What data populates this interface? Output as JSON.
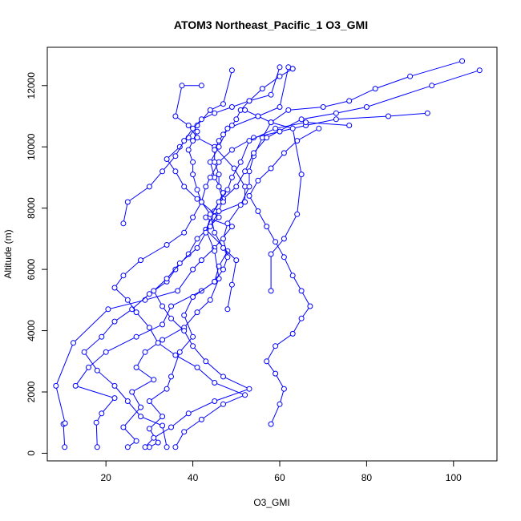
{
  "chart_data": {
    "type": "line",
    "title": "ATOM3 Northeast_Pacific_1 O3_GMI",
    "xlabel": "O3_GMI",
    "ylabel": "Altitude (m)",
    "xlim": [
      6.5,
      110
    ],
    "ylim": [
      -250,
      13250
    ],
    "x_ticks": [
      20,
      40,
      60,
      80,
      100
    ],
    "y_ticks": [
      0,
      2000,
      4000,
      6000,
      8000,
      10000,
      12000
    ],
    "grid": false,
    "colors": {
      "series": "#0000ff",
      "text": "#000000",
      "frame": "#000000"
    },
    "marker": "open-circle",
    "series": [
      {
        "points": [
          [
            10.5,
            200
          ],
          [
            10.2,
            950
          ],
          [
            10.6,
            980
          ],
          [
            8.5,
            2200
          ],
          [
            12.5,
            3600
          ],
          [
            20.5,
            4700
          ],
          [
            29,
            5000
          ],
          [
            36.5,
            5300
          ],
          [
            40,
            6000
          ],
          [
            42,
            6300
          ],
          [
            45,
            6700
          ],
          [
            49,
            7400
          ],
          [
            43,
            7700
          ],
          [
            52,
            8200
          ],
          [
            52,
            8700
          ],
          [
            49.5,
            9300
          ],
          [
            45,
            10000
          ],
          [
            41,
            10300
          ],
          [
            39,
            10700
          ],
          [
            36,
            11000
          ],
          [
            37.5,
            12000
          ],
          [
            42,
            12000
          ]
        ]
      },
      {
        "points": [
          [
            18,
            200
          ],
          [
            17.8,
            1000
          ],
          [
            19,
            1300
          ],
          [
            22,
            1800
          ],
          [
            13,
            2200
          ],
          [
            16,
            2800
          ],
          [
            20,
            3300
          ],
          [
            27,
            3800
          ],
          [
            33,
            4200
          ],
          [
            35,
            4800
          ],
          [
            42,
            5300
          ],
          [
            45,
            5600
          ],
          [
            46,
            6100
          ],
          [
            48,
            6600
          ],
          [
            43,
            7300
          ],
          [
            46,
            7700
          ],
          [
            41,
            8300
          ],
          [
            38,
            8700
          ],
          [
            36,
            9200
          ],
          [
            34,
            9600
          ],
          [
            37,
            10000
          ],
          [
            39,
            10300
          ],
          [
            41,
            10700
          ],
          [
            44,
            11200
          ],
          [
            47,
            11400
          ],
          [
            49,
            12500
          ]
        ]
      },
      {
        "points": [
          [
            25,
            200
          ],
          [
            27,
            400
          ],
          [
            24,
            850
          ],
          [
            28,
            1500
          ],
          [
            26,
            2000
          ],
          [
            31,
            2400
          ],
          [
            27,
            2800
          ],
          [
            29,
            3300
          ],
          [
            33,
            3700
          ],
          [
            38,
            4100
          ],
          [
            41,
            4600
          ],
          [
            44,
            5000
          ],
          [
            46,
            5700
          ],
          [
            45,
            6600
          ],
          [
            43,
            7300
          ],
          [
            45,
            7900
          ],
          [
            47,
            8500
          ],
          [
            45,
            9000
          ],
          [
            44,
            9500
          ],
          [
            46,
            10000
          ],
          [
            48,
            10600
          ],
          [
            55,
            11000
          ],
          [
            60,
            11300
          ],
          [
            62,
            12600
          ],
          [
            63,
            12550
          ]
        ]
      },
      {
        "points": [
          [
            30,
            200
          ],
          [
            32,
            350
          ],
          [
            30,
            800
          ],
          [
            33,
            1200
          ],
          [
            30,
            1700
          ],
          [
            34,
            2100
          ],
          [
            35,
            2500
          ],
          [
            37,
            3300
          ],
          [
            40,
            3800
          ],
          [
            38,
            4500
          ],
          [
            40,
            5100
          ],
          [
            45,
            5600
          ],
          [
            47,
            6000
          ],
          [
            48,
            6400
          ],
          [
            47,
            7000
          ],
          [
            48,
            7500
          ],
          [
            51,
            8100
          ],
          [
            53,
            8700
          ],
          [
            53,
            9200
          ],
          [
            54,
            9700
          ],
          [
            56,
            10300
          ],
          [
            58,
            10800
          ],
          [
            62,
            11200
          ],
          [
            70,
            11300
          ],
          [
            76,
            11500
          ],
          [
            82,
            11900
          ],
          [
            90,
            12300
          ],
          [
            102,
            12800
          ]
        ]
      },
      {
        "points": [
          [
            34,
            200
          ],
          [
            33,
            900
          ],
          [
            28,
            1200
          ],
          [
            25,
            1700
          ],
          [
            22,
            2200
          ],
          [
            18,
            2700
          ],
          [
            15,
            3300
          ],
          [
            19,
            3800
          ],
          [
            22,
            4300
          ],
          [
            26,
            4700
          ],
          [
            30,
            5200
          ],
          [
            34,
            5600
          ],
          [
            36,
            6000
          ],
          [
            39,
            6500
          ],
          [
            41,
            7000
          ],
          [
            44,
            7400
          ],
          [
            46,
            7900
          ],
          [
            47,
            8300
          ],
          [
            50,
            8700
          ],
          [
            52,
            9200
          ],
          [
            54,
            9800
          ],
          [
            57,
            10300
          ],
          [
            65,
            10900
          ],
          [
            73,
            11100
          ],
          [
            80,
            11300
          ],
          [
            95,
            12000
          ],
          [
            106,
            12500
          ]
        ]
      },
      {
        "points": [
          [
            36,
            200
          ],
          [
            38,
            700
          ],
          [
            42,
            1100
          ],
          [
            47,
            1600
          ],
          [
            52,
            1900
          ],
          [
            45,
            2300
          ],
          [
            41,
            2800
          ],
          [
            36,
            3200
          ],
          [
            32,
            3600
          ],
          [
            30,
            4100
          ],
          [
            27,
            4600
          ],
          [
            25,
            5000
          ],
          [
            22,
            5400
          ],
          [
            24,
            5800
          ],
          [
            28,
            6300
          ],
          [
            34,
            6800
          ],
          [
            38,
            7200
          ],
          [
            40,
            7700
          ],
          [
            42,
            8200
          ],
          [
            43,
            8700
          ],
          [
            44,
            9000
          ],
          [
            46,
            9500
          ],
          [
            49,
            9900
          ],
          [
            54,
            10300
          ],
          [
            60,
            10500
          ],
          [
            66,
            10700
          ],
          [
            73,
            10900
          ],
          [
            85,
            11000
          ],
          [
            94,
            11100
          ]
        ]
      },
      {
        "points": [
          [
            29,
            200
          ],
          [
            31,
            500
          ],
          [
            35,
            850
          ],
          [
            39,
            1300
          ],
          [
            45,
            1700
          ],
          [
            53,
            2100
          ],
          [
            47,
            2500
          ],
          [
            43,
            3000
          ],
          [
            40,
            3500
          ],
          [
            38,
            4000
          ],
          [
            35,
            4400
          ],
          [
            33,
            4800
          ],
          [
            31,
            5300
          ],
          [
            34,
            5700
          ],
          [
            37,
            6200
          ],
          [
            41,
            6700
          ],
          [
            43,
            7200
          ],
          [
            44,
            7700
          ],
          [
            46,
            8200
          ],
          [
            48,
            8600
          ],
          [
            49,
            9000
          ],
          [
            51,
            9500
          ],
          [
            53,
            10200
          ],
          [
            59,
            10600
          ],
          [
            66,
            10800
          ],
          [
            76,
            10700
          ]
        ]
      },
      {
        "points": [
          [
            58,
            950
          ],
          [
            60,
            1600
          ],
          [
            61,
            2100
          ],
          [
            59,
            2600
          ],
          [
            57,
            3000
          ],
          [
            59,
            3500
          ],
          [
            63,
            3900
          ],
          [
            65,
            4400
          ],
          [
            67,
            4800
          ],
          [
            65,
            5300
          ],
          [
            63,
            5800
          ],
          [
            61,
            6400
          ],
          [
            59,
            6900
          ],
          [
            57,
            7400
          ],
          [
            55,
            7900
          ],
          [
            53,
            8400
          ],
          [
            55,
            8900
          ],
          [
            58,
            9300
          ],
          [
            61,
            9800
          ],
          [
            64,
            10200
          ],
          [
            69,
            10600
          ]
        ]
      },
      {
        "points": [
          [
            24,
            7500
          ],
          [
            25,
            8200
          ],
          [
            30,
            8700
          ],
          [
            33,
            9200
          ],
          [
            36,
            9700
          ],
          [
            38,
            10200
          ],
          [
            40,
            10600
          ],
          [
            42,
            10900
          ],
          [
            45,
            11100
          ],
          [
            49,
            11300
          ],
          [
            53,
            11500
          ],
          [
            58,
            11700
          ],
          [
            60,
            12600
          ]
        ]
      },
      {
        "points": [
          [
            63,
            12550
          ],
          [
            60,
            12300
          ],
          [
            56,
            11900
          ],
          [
            53,
            11500
          ],
          [
            51,
            11200
          ],
          [
            50,
            10900
          ],
          [
            49,
            10700
          ],
          [
            48,
            10600
          ],
          [
            47,
            10400
          ],
          [
            46,
            10200
          ],
          [
            45,
            9900
          ],
          [
            45,
            9500
          ],
          [
            46,
            9100
          ],
          [
            46,
            8700
          ],
          [
            47,
            8200
          ]
        ]
      },
      {
        "points": [
          [
            58,
            5300
          ],
          [
            58,
            6500
          ],
          [
            61,
            7000
          ],
          [
            64,
            7800
          ],
          [
            65,
            9100
          ],
          [
            63,
            10600
          ],
          [
            58,
            10800
          ],
          [
            55,
            11000
          ],
          [
            52,
            11200
          ]
        ]
      },
      {
        "points": [
          [
            48,
            4700
          ],
          [
            49,
            5500
          ],
          [
            50,
            6300
          ],
          [
            47,
            6700
          ],
          [
            45,
            7200
          ],
          [
            44,
            7800
          ],
          [
            42,
            8200
          ],
          [
            41,
            8600
          ],
          [
            40,
            9100
          ],
          [
            40,
            9500
          ],
          [
            39,
            9900
          ],
          [
            40,
            10200
          ],
          [
            41,
            10500
          ]
        ]
      }
    ]
  }
}
